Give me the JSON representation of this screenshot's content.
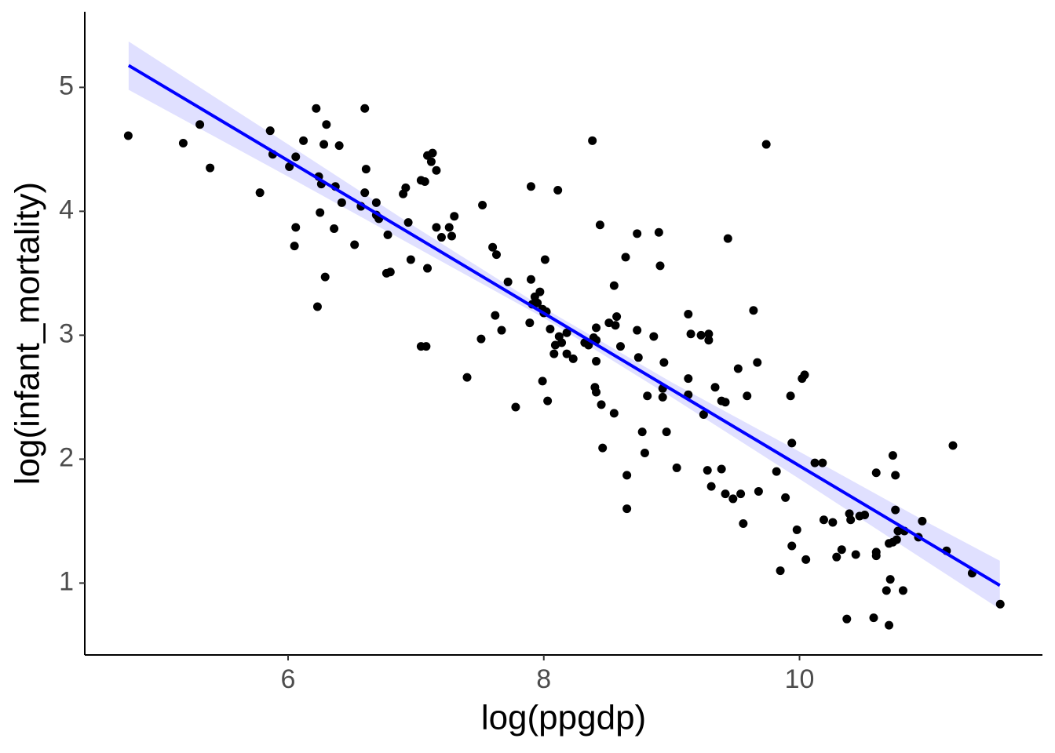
{
  "chart_data": {
    "type": "scatter",
    "x_label": "log(ppgdp)",
    "y_label": "log(infant_mortality)",
    "xlim": [
      4.41,
      11.9
    ],
    "ylim": [
      0.42,
      5.61
    ],
    "xticks": [
      6,
      8,
      10
    ],
    "yticks": [
      1,
      2,
      3,
      4,
      5
    ],
    "grid": false,
    "color": "#000000",
    "x": [
      4.75,
      5.18,
      5.31,
      5.39,
      5.78,
      5.86,
      5.88,
      6.01,
      6.06,
      6.12,
      6.06,
      6.05,
      6.22,
      6.3,
      6.28,
      6.24,
      6.26,
      6.37,
      6.4,
      6.25,
      6.36,
      6.42,
      6.29,
      6.23,
      6.52,
      6.6,
      6.61,
      6.6,
      6.57,
      6.69,
      6.69,
      6.71,
      6.78,
      6.77,
      6.8,
      6.9,
      6.92,
      6.94,
      6.96,
      7.04,
      7.07,
      7.09,
      7.13,
      7.12,
      7.16,
      7.16,
      7.2,
      7.26,
      7.28,
      7.3,
      7.09,
      7.04,
      7.08,
      7.4,
      7.52,
      7.51,
      7.6,
      7.63,
      7.62,
      7.67,
      7.72,
      7.78,
      7.9,
      7.9,
      7.91,
      7.89,
      7.93,
      7.97,
      7.95,
      7.99,
      8.01,
      8.0,
      8.02,
      7.99,
      8.03,
      8.05,
      8.08,
      8.09,
      8.12,
      8.14,
      8.11,
      8.18,
      8.18,
      8.23,
      8.32,
      8.35,
      8.38,
      8.39,
      8.41,
      8.41,
      8.41,
      8.4,
      8.41,
      8.45,
      8.44,
      8.46,
      8.51,
      8.55,
      8.56,
      8.57,
      8.55,
      8.6,
      8.64,
      8.65,
      8.65,
      8.73,
      8.73,
      8.74,
      8.77,
      8.79,
      8.81,
      8.86,
      8.9,
      8.91,
      8.93,
      8.93,
      8.94,
      8.96,
      9.04,
      9.13,
      9.15,
      9.13,
      9.13,
      9.23,
      9.25,
      9.29,
      9.29,
      9.28,
      9.31,
      9.34,
      9.39,
      9.42,
      9.39,
      9.42,
      9.44,
      9.48,
      9.52,
      9.54,
      9.56,
      9.59,
      9.64,
      9.67,
      9.68,
      9.74,
      9.82,
      9.85,
      9.89,
      9.93,
      9.94,
      9.94,
      9.98,
      10.02,
      10.04,
      10.05,
      10.12,
      10.18,
      10.19,
      10.26,
      10.29,
      10.33,
      10.37,
      10.39,
      10.4,
      10.44,
      10.47,
      10.51,
      10.58,
      10.6,
      10.6,
      10.6,
      10.68,
      10.7,
      10.71,
      10.7,
      10.73,
      10.73,
      10.75,
      10.75,
      10.76,
      10.77,
      10.81,
      10.82,
      10.93,
      10.96,
      11.15,
      11.2,
      11.35,
      11.57
    ],
    "values": [
      4.61,
      4.55,
      4.7,
      4.35,
      4.15,
      4.65,
      4.46,
      4.36,
      4.44,
      4.57,
      3.87,
      3.72,
      4.83,
      4.7,
      4.54,
      4.28,
      4.22,
      4.2,
      4.53,
      3.99,
      3.86,
      4.07,
      3.47,
      3.23,
      3.73,
      4.83,
      4.34,
      4.15,
      4.04,
      4.07,
      3.97,
      3.94,
      3.81,
      3.5,
      3.51,
      4.14,
      4.19,
      3.91,
      3.61,
      4.25,
      4.24,
      4.45,
      4.47,
      4.4,
      4.33,
      3.87,
      3.79,
      3.87,
      3.8,
      3.96,
      3.54,
      2.91,
      2.91,
      2.66,
      4.05,
      2.97,
      3.71,
      3.65,
      3.16,
      3.04,
      3.43,
      2.42,
      4.2,
      3.45,
      3.25,
      3.1,
      3.31,
      3.35,
      3.26,
      3.21,
      3.61,
      3.18,
      3.19,
      2.63,
      2.47,
      3.05,
      2.85,
      2.92,
      2.99,
      2.94,
      4.17,
      3.02,
      2.85,
      2.81,
      2.94,
      2.92,
      4.57,
      2.98,
      2.96,
      3.06,
      2.79,
      2.58,
      2.54,
      2.44,
      3.89,
      2.09,
      3.1,
      3.4,
      3.08,
      3.15,
      2.37,
      2.91,
      3.63,
      1.87,
      1.6,
      3.82,
      3.04,
      2.82,
      2.22,
      2.05,
      2.51,
      2.99,
      3.83,
      3.56,
      2.57,
      2.5,
      2.78,
      2.22,
      1.93,
      3.17,
      3.01,
      2.65,
      2.52,
      3.0,
      2.36,
      3.01,
      2.96,
      1.91,
      1.78,
      2.58,
      2.47,
      2.46,
      1.92,
      1.72,
      3.78,
      1.68,
      2.73,
      1.72,
      1.48,
      2.51,
      3.2,
      2.78,
      1.74,
      4.54,
      1.9,
      1.1,
      1.69,
      2.51,
      2.13,
      1.3,
      1.43,
      2.65,
      2.68,
      1.19,
      1.97,
      1.97,
      1.51,
      1.49,
      1.21,
      1.27,
      0.71,
      1.56,
      1.51,
      1.23,
      1.54,
      1.55,
      0.72,
      1.89,
      1.22,
      1.25,
      0.94,
      0.66,
      1.03,
      1.32,
      2.03,
      1.33,
      1.87,
      1.59,
      1.35,
      1.42,
      0.94,
      1.42,
      1.37,
      1.5,
      1.26,
      2.11,
      1.08,
      0.83
    ],
    "fit": {
      "color": "#0000ff",
      "x": [
        4.753,
        11.567
      ],
      "values": [
        5.177,
        0.981
      ]
    },
    "band": {
      "color": "#e0e0ff",
      "x": [
        4.753,
        6,
        7,
        8,
        9,
        10,
        11,
        11.567
      ],
      "lower": [
        4.98,
        4.28,
        3.71,
        3.14,
        2.5,
        1.84,
        1.17,
        0.79
      ],
      "upper": [
        5.37,
        4.54,
        3.87,
        3.22,
        2.62,
        2.06,
        1.49,
        1.18
      ]
    }
  }
}
